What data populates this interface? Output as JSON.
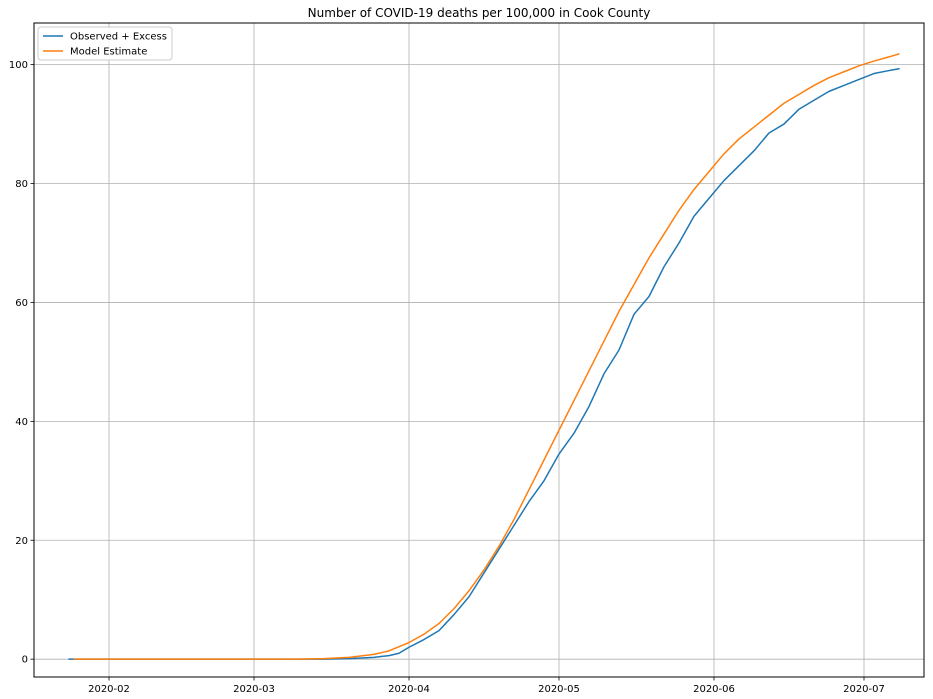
{
  "chart_data": {
    "type": "line",
    "title": "Number of COVID-19 deaths per 100,000 in Cook County",
    "xlabel": "",
    "ylabel": "",
    "xlim": [
      "2020-01-17",
      "2020-07-13"
    ],
    "ylim": [
      -3,
      107
    ],
    "grid": true,
    "legend_position": "top-left",
    "x_ticks": [
      "2020-02-01",
      "2020-03-01",
      "2020-04-01",
      "2020-05-01",
      "2020-06-01",
      "2020-07-01"
    ],
    "x_tick_labels": [
      "2020-02",
      "2020-03",
      "2020-04",
      "2020-05",
      "2020-06",
      "2020-07"
    ],
    "y_ticks": [
      0,
      20,
      40,
      60,
      80,
      100
    ],
    "y_tick_labels": [
      "0",
      "20",
      "40",
      "60",
      "80",
      "100"
    ],
    "series": [
      {
        "name": "Observed + Excess",
        "color": "#1f77b4",
        "points": [
          [
            "2020-01-24",
            0
          ],
          [
            "2020-02-15",
            0
          ],
          [
            "2020-03-10",
            0
          ],
          [
            "2020-03-15",
            0
          ],
          [
            "2020-03-20",
            0.1
          ],
          [
            "2020-03-25",
            0.3
          ],
          [
            "2020-03-28",
            0.6
          ],
          [
            "2020-03-30",
            1.0
          ],
          [
            "2020-04-01",
            2.0
          ],
          [
            "2020-04-04",
            3.3
          ],
          [
            "2020-04-07",
            4.8
          ],
          [
            "2020-04-10",
            7.5
          ],
          [
            "2020-04-13",
            10.5
          ],
          [
            "2020-04-16",
            14.5
          ],
          [
            "2020-04-19",
            18.5
          ],
          [
            "2020-04-22",
            22.5
          ],
          [
            "2020-04-25",
            26.5
          ],
          [
            "2020-04-28",
            30.0
          ],
          [
            "2020-05-01",
            34.5
          ],
          [
            "2020-05-04",
            38.0
          ],
          [
            "2020-05-07",
            42.5
          ],
          [
            "2020-05-10",
            48.0
          ],
          [
            "2020-05-13",
            52.0
          ],
          [
            "2020-05-16",
            58.0
          ],
          [
            "2020-05-19",
            61.0
          ],
          [
            "2020-05-22",
            66.0
          ],
          [
            "2020-05-25",
            70.0
          ],
          [
            "2020-05-28",
            74.5
          ],
          [
            "2020-05-31",
            77.5
          ],
          [
            "2020-06-03",
            80.5
          ],
          [
            "2020-06-06",
            83.0
          ],
          [
            "2020-06-09",
            85.5
          ],
          [
            "2020-06-12",
            88.5
          ],
          [
            "2020-06-15",
            90.0
          ],
          [
            "2020-06-18",
            92.5
          ],
          [
            "2020-06-21",
            94.0
          ],
          [
            "2020-06-24",
            95.5
          ],
          [
            "2020-06-27",
            96.5
          ],
          [
            "2020-06-30",
            97.5
          ],
          [
            "2020-07-03",
            98.5
          ],
          [
            "2020-07-06",
            99.0
          ],
          [
            "2020-07-08",
            99.3
          ]
        ]
      },
      {
        "name": "Model Estimate",
        "color": "#ff7f0e",
        "points": [
          [
            "2020-01-25",
            0
          ],
          [
            "2020-02-15",
            0
          ],
          [
            "2020-03-10",
            0
          ],
          [
            "2020-03-15",
            0.1
          ],
          [
            "2020-03-20",
            0.3
          ],
          [
            "2020-03-25",
            0.8
          ],
          [
            "2020-03-28",
            1.4
          ],
          [
            "2020-04-01",
            2.8
          ],
          [
            "2020-04-04",
            4.2
          ],
          [
            "2020-04-07",
            6.0
          ],
          [
            "2020-04-10",
            8.5
          ],
          [
            "2020-04-13",
            11.5
          ],
          [
            "2020-04-16",
            15.0
          ],
          [
            "2020-04-19",
            19.0
          ],
          [
            "2020-04-22",
            23.5
          ],
          [
            "2020-04-25",
            28.5
          ],
          [
            "2020-04-28",
            33.5
          ],
          [
            "2020-05-01",
            38.5
          ],
          [
            "2020-05-04",
            43.5
          ],
          [
            "2020-05-07",
            48.5
          ],
          [
            "2020-05-10",
            53.5
          ],
          [
            "2020-05-13",
            58.5
          ],
          [
            "2020-05-16",
            63.0
          ],
          [
            "2020-05-19",
            67.5
          ],
          [
            "2020-05-22",
            71.5
          ],
          [
            "2020-05-25",
            75.5
          ],
          [
            "2020-05-28",
            79.0
          ],
          [
            "2020-05-31",
            82.0
          ],
          [
            "2020-06-03",
            85.0
          ],
          [
            "2020-06-06",
            87.5
          ],
          [
            "2020-06-09",
            89.5
          ],
          [
            "2020-06-12",
            91.5
          ],
          [
            "2020-06-15",
            93.5
          ],
          [
            "2020-06-18",
            95.0
          ],
          [
            "2020-06-21",
            96.5
          ],
          [
            "2020-06-24",
            97.8
          ],
          [
            "2020-06-27",
            98.8
          ],
          [
            "2020-06-30",
            99.8
          ],
          [
            "2020-07-03",
            100.6
          ],
          [
            "2020-07-06",
            101.3
          ],
          [
            "2020-07-08",
            101.8
          ]
        ]
      }
    ]
  }
}
